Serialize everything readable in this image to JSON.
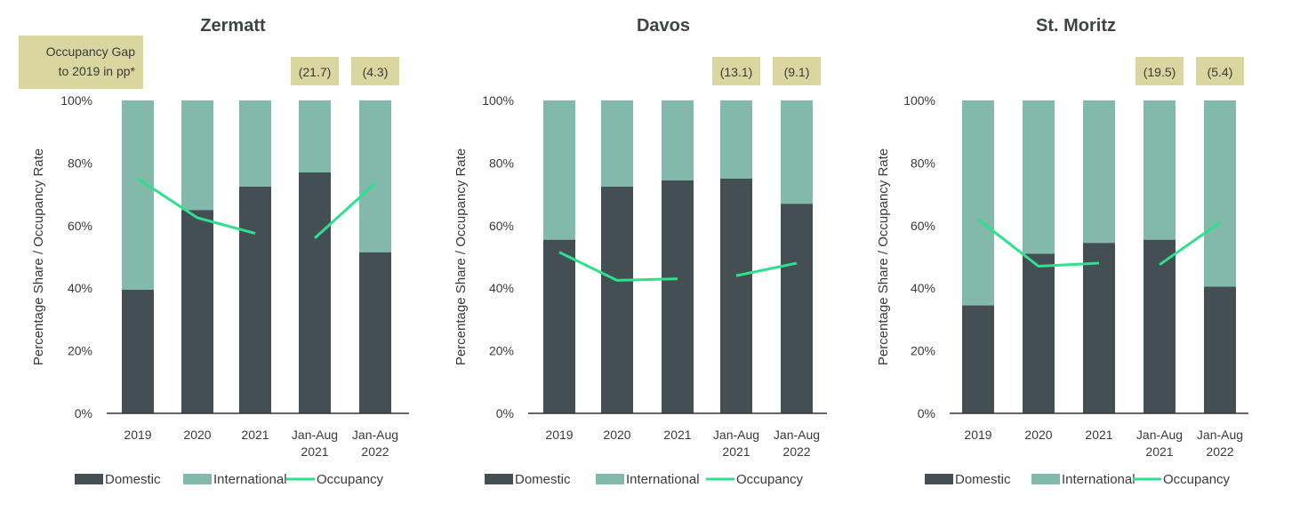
{
  "gap_caption": [
    "Occupancy Gap",
    "to 2019 in pp*"
  ],
  "colors": {
    "domestic": "#434f52",
    "international": "#82b9aa",
    "occupancy": "#2fe08e",
    "gap_box": "#d9d6a0",
    "axis": "#333333",
    "text": "#3a3a3a"
  },
  "legend": {
    "domestic": "Domestic",
    "international": "International",
    "occupancy": "Occupancy"
  },
  "chart_data": [
    {
      "type": "bar",
      "title": "Zermatt",
      "ylabel": "Percentage Share / Occupancy Rate",
      "ylim": [
        0,
        100
      ],
      "yticks": [
        "0%",
        "20%",
        "40%",
        "60%",
        "80%",
        "100%"
      ],
      "categories": [
        [
          "2019"
        ],
        [
          "2020"
        ],
        [
          "2021"
        ],
        [
          "Jan-Aug",
          "2021"
        ],
        [
          "Jan-Aug",
          "2022"
        ]
      ],
      "series": [
        {
          "name": "Domestic",
          "values": [
            39.5,
            65,
            72.5,
            77,
            51.5
          ]
        },
        {
          "name": "International",
          "values": [
            60.5,
            35,
            27.5,
            23,
            48.5
          ]
        },
        {
          "name": "Occupancy",
          "values": [
            75,
            62.5,
            57.5,
            56,
            73.5
          ],
          "line_segments": [
            [
              0,
              2
            ],
            [
              3,
              4
            ]
          ]
        }
      ],
      "gap_labels": [
        "",
        "",
        "",
        "(21.7)",
        "(4.3)"
      ]
    },
    {
      "type": "bar",
      "title": "Davos",
      "ylabel": "Percentage Share / Occupancy Rate",
      "ylim": [
        0,
        100
      ],
      "yticks": [
        "0%",
        "20%",
        "40%",
        "60%",
        "80%",
        "100%"
      ],
      "categories": [
        [
          "2019"
        ],
        [
          "2020"
        ],
        [
          "2021"
        ],
        [
          "Jan-Aug",
          "2021"
        ],
        [
          "Jan-Aug",
          "2022"
        ]
      ],
      "series": [
        {
          "name": "Domestic",
          "values": [
            55.5,
            72.5,
            74.5,
            75,
            67
          ]
        },
        {
          "name": "International",
          "values": [
            44.5,
            27.5,
            25.5,
            25,
            33
          ]
        },
        {
          "name": "Occupancy",
          "values": [
            51.5,
            42.5,
            43,
            44,
            48
          ],
          "line_segments": [
            [
              0,
              2
            ],
            [
              3,
              4
            ]
          ]
        }
      ],
      "gap_labels": [
        "",
        "",
        "",
        "(13.1)",
        "(9.1)"
      ]
    },
    {
      "type": "bar",
      "title": "St. Moritz",
      "ylabel": "Percentage Share / Occupancy Rate",
      "ylim": [
        0,
        100
      ],
      "yticks": [
        "0%",
        "20%",
        "40%",
        "60%",
        "80%",
        "100%"
      ],
      "categories": [
        [
          "2019"
        ],
        [
          "2020"
        ],
        [
          "2021"
        ],
        [
          "Jan-Aug",
          "2021"
        ],
        [
          "Jan-Aug",
          "2022"
        ]
      ],
      "series": [
        {
          "name": "Domestic",
          "values": [
            34.5,
            51,
            54.5,
            55.5,
            40.5
          ]
        },
        {
          "name": "International",
          "values": [
            65.5,
            49,
            45.5,
            44.5,
            59.5
          ]
        },
        {
          "name": "Occupancy",
          "values": [
            62,
            47,
            48,
            47.5,
            61
          ],
          "line_segments": [
            [
              0,
              2
            ],
            [
              3,
              4
            ]
          ]
        }
      ],
      "gap_labels": [
        "",
        "",
        "",
        "(19.5)",
        "(5.4)"
      ]
    }
  ]
}
